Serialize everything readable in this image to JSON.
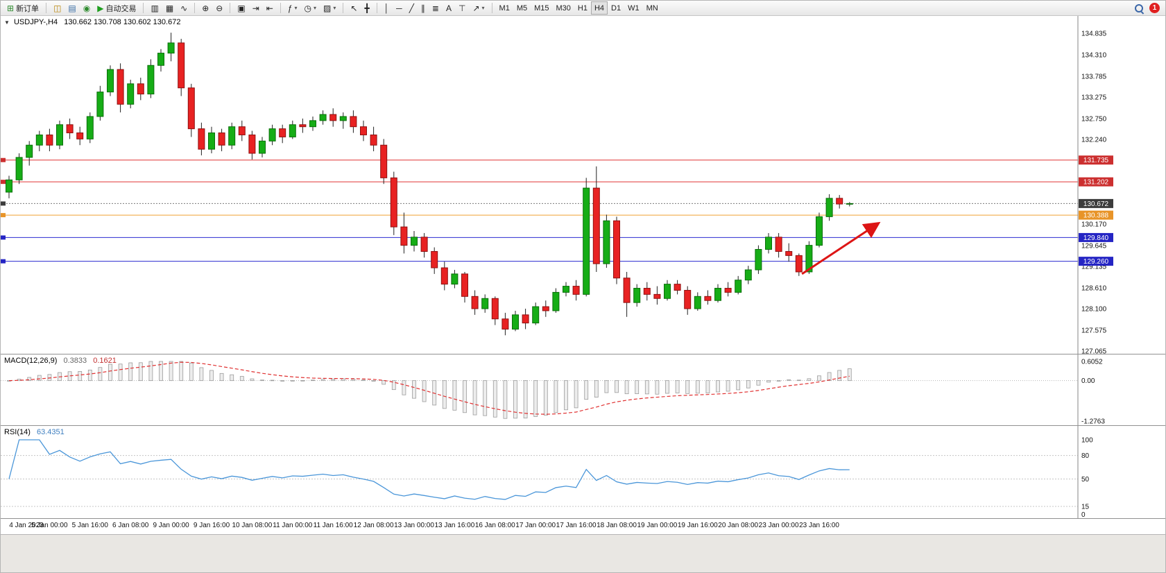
{
  "toolbar": {
    "groups": [
      {
        "name": "order",
        "items": [
          {
            "name": "new-order-button",
            "glyph": "⊞",
            "glyph_color": "#2e8b2e",
            "label": "新订单"
          }
        ]
      },
      {
        "name": "windows",
        "items": [
          {
            "name": "market-watch-button",
            "glyph": "◫",
            "glyph_color": "#b8860b"
          },
          {
            "name": "data-window-button",
            "glyph": "▤",
            "glyph_color": "#3a6ea5"
          },
          {
            "name": "navigator-button",
            "glyph": "◉",
            "glyph_color": "#2e8b2e"
          },
          {
            "name": "autotrading-button",
            "glyph": "▶",
            "glyph_color": "#1e9e1e",
            "label": "自动交易"
          }
        ]
      },
      {
        "name": "chart-type",
        "items": [
          {
            "name": "bar-chart-button",
            "glyph": "▥"
          },
          {
            "name": "candlestick-chart-button",
            "glyph": "▦"
          },
          {
            "name": "line-chart-button",
            "glyph": "∿"
          }
        ]
      },
      {
        "name": "zoom",
        "items": [
          {
            "name": "zoom-in-button",
            "glyph": "⊕"
          },
          {
            "name": "zoom-out-button",
            "glyph": "⊖"
          }
        ]
      },
      {
        "name": "layout",
        "items": [
          {
            "name": "tile-windows-button",
            "glyph": "▣"
          },
          {
            "name": "auto-scroll-button",
            "glyph": "⇥"
          },
          {
            "name": "chart-shift-button",
            "glyph": "⇤"
          }
        ]
      },
      {
        "name": "tools",
        "items": [
          {
            "name": "indicators-button",
            "glyph": "ƒ",
            "dropdown": true
          },
          {
            "name": "periods-button",
            "glyph": "◷",
            "dropdown": true
          },
          {
            "name": "templates-button",
            "glyph": "▨",
            "dropdown": true
          }
        ]
      },
      {
        "name": "pointer",
        "items": [
          {
            "name": "cursor-button",
            "glyph": "↖"
          },
          {
            "name": "crosshair-button",
            "glyph": "╋"
          }
        ]
      },
      {
        "name": "draw",
        "items": [
          {
            "name": "vertical-line-button",
            "glyph": "│"
          },
          {
            "name": "horizontal-line-button",
            "glyph": "─"
          },
          {
            "name": "trendline-button",
            "glyph": "╱"
          },
          {
            "name": "channel-button",
            "glyph": "∥"
          },
          {
            "name": "fibonacci-button",
            "glyph": "≣"
          },
          {
            "name": "text-button",
            "glyph": "A"
          },
          {
            "name": "text-label-button",
            "glyph": "⊤"
          },
          {
            "name": "shapes-button",
            "glyph": "↗",
            "dropdown": true
          }
        ]
      },
      {
        "name": "timeframes",
        "items": [
          {
            "name": "tf-m1-button",
            "label": "M1"
          },
          {
            "name": "tf-m5-button",
            "label": "M5"
          },
          {
            "name": "tf-m15-button",
            "label": "M15"
          },
          {
            "name": "tf-m30-button",
            "label": "M30"
          },
          {
            "name": "tf-h1-button",
            "label": "H1"
          },
          {
            "name": "tf-h4-button",
            "label": "H4",
            "active": true
          },
          {
            "name": "tf-d1-button",
            "label": "D1"
          },
          {
            "name": "tf-w1-button",
            "label": "W1"
          },
          {
            "name": "tf-mn-button",
            "label": "MN"
          }
        ]
      }
    ],
    "notification": {
      "count": "1"
    }
  },
  "chart": {
    "title": {
      "symbol": "USDJPY-,H4",
      "ohlc": "130.662 130.708 130.602 130.672"
    },
    "indicators": {
      "macd": {
        "label": "MACD(12,26,9)",
        "value_main": "0.3833",
        "value_signal": "0.1621",
        "axis": [
          "0.6052",
          "0.00",
          "-1.2763"
        ]
      },
      "rsi": {
        "label": "RSI(14)",
        "value": "63.4351",
        "axis": [
          "100",
          "80",
          "50",
          "15",
          "0"
        ]
      }
    }
  },
  "chart_data": {
    "type": "candlestick",
    "symbol": "USDJPY-",
    "timeframe": "H4",
    "ohlc_current": {
      "open": 130.662,
      "high": 130.708,
      "low": 130.602,
      "close": 130.672
    },
    "ylim": [
      127.065,
      134.835
    ],
    "y_ticks": [
      "134.835",
      "134.310",
      "133.785",
      "133.275",
      "132.750",
      "132.240",
      "131.715",
      "131.205",
      "130.680",
      "130.170",
      "129.645",
      "129.135",
      "128.610",
      "128.100",
      "127.575",
      "127.065"
    ],
    "x_labels": [
      "4 Jan 2023",
      "5 Jan 00:00",
      "5 Jan 16:00",
      "6 Jan 08:00",
      "9 Jan 00:00",
      "9 Jan 16:00",
      "10 Jan 08:00",
      "11 Jan 00:00",
      "11 Jan 16:00",
      "12 Jan 08:00",
      "13 Jan 00:00",
      "13 Jan 16:00",
      "16 Jan 08:00",
      "17 Jan 00:00",
      "17 Jan 16:00",
      "18 Jan 08:00",
      "19 Jan 00:00",
      "19 Jan 16:00",
      "20 Jan 08:00",
      "23 Jan 00:00",
      "23 Jan 16:00"
    ],
    "x_label_step": 4,
    "candles": [
      [
        130.95,
        131.35,
        130.8,
        131.25
      ],
      [
        131.25,
        131.9,
        131.15,
        131.8
      ],
      [
        131.8,
        132.2,
        131.6,
        132.1
      ],
      [
        132.1,
        132.45,
        131.95,
        132.35
      ],
      [
        132.35,
        132.5,
        131.95,
        132.1
      ],
      [
        132.1,
        132.7,
        132.0,
        132.6
      ],
      [
        132.6,
        132.75,
        132.25,
        132.4
      ],
      [
        132.4,
        132.55,
        132.1,
        132.25
      ],
      [
        132.25,
        132.9,
        132.15,
        132.8
      ],
      [
        132.8,
        133.55,
        132.7,
        133.4
      ],
      [
        133.4,
        134.05,
        133.3,
        133.95
      ],
      [
        133.95,
        134.1,
        132.9,
        133.1
      ],
      [
        133.1,
        133.7,
        133.0,
        133.6
      ],
      [
        133.6,
        133.75,
        133.2,
        133.35
      ],
      [
        133.35,
        134.2,
        133.25,
        134.05
      ],
      [
        134.05,
        134.45,
        133.9,
        134.35
      ],
      [
        134.35,
        134.85,
        134.15,
        134.6
      ],
      [
        134.6,
        134.7,
        133.3,
        133.5
      ],
      [
        133.5,
        133.6,
        132.3,
        132.5
      ],
      [
        132.5,
        132.65,
        131.85,
        132.0
      ],
      [
        132.0,
        132.55,
        131.9,
        132.4
      ],
      [
        132.4,
        132.5,
        131.95,
        132.1
      ],
      [
        132.1,
        132.65,
        132.0,
        132.55
      ],
      [
        132.55,
        132.7,
        132.2,
        132.35
      ],
      [
        132.35,
        132.45,
        131.75,
        131.9
      ],
      [
        131.9,
        132.3,
        131.8,
        132.2
      ],
      [
        132.2,
        132.6,
        132.1,
        132.5
      ],
      [
        132.5,
        132.6,
        132.15,
        132.3
      ],
      [
        132.3,
        132.7,
        132.25,
        132.6
      ],
      [
        132.6,
        132.75,
        132.4,
        132.55
      ],
      [
        132.55,
        132.8,
        132.45,
        132.7
      ],
      [
        132.7,
        132.95,
        132.6,
        132.85
      ],
      [
        132.85,
        133.0,
        132.55,
        132.7
      ],
      [
        132.7,
        132.9,
        132.5,
        132.8
      ],
      [
        132.8,
        132.95,
        132.4,
        132.55
      ],
      [
        132.55,
        132.7,
        132.2,
        132.35
      ],
      [
        132.35,
        132.55,
        131.95,
        132.1
      ],
      [
        132.1,
        132.25,
        131.15,
        131.3
      ],
      [
        131.3,
        131.45,
        129.9,
        130.1
      ],
      [
        130.1,
        130.45,
        129.45,
        129.65
      ],
      [
        129.65,
        130.0,
        129.5,
        129.85
      ],
      [
        129.85,
        129.95,
        129.35,
        129.5
      ],
      [
        129.5,
        129.6,
        128.95,
        129.1
      ],
      [
        129.1,
        129.25,
        128.55,
        128.7
      ],
      [
        128.7,
        129.05,
        128.6,
        128.95
      ],
      [
        128.95,
        129.0,
        128.25,
        128.4
      ],
      [
        128.4,
        128.55,
        127.95,
        128.1
      ],
      [
        128.1,
        128.45,
        128.0,
        128.35
      ],
      [
        128.35,
        128.4,
        127.7,
        127.85
      ],
      [
        127.85,
        128.0,
        127.45,
        127.6
      ],
      [
        127.6,
        128.05,
        127.55,
        127.95
      ],
      [
        127.95,
        128.1,
        127.6,
        127.75
      ],
      [
        127.75,
        128.25,
        127.7,
        128.15
      ],
      [
        128.15,
        128.3,
        127.9,
        128.05
      ],
      [
        128.05,
        128.6,
        128.0,
        128.5
      ],
      [
        128.5,
        128.75,
        128.4,
        128.65
      ],
      [
        128.65,
        128.8,
        128.3,
        128.45
      ],
      [
        128.45,
        131.3,
        128.4,
        131.05
      ],
      [
        131.05,
        131.58,
        129.0,
        129.2
      ],
      [
        129.2,
        130.4,
        129.1,
        130.25
      ],
      [
        130.25,
        130.35,
        128.7,
        128.85
      ],
      [
        128.85,
        129.0,
        127.9,
        128.25
      ],
      [
        128.25,
        128.7,
        128.15,
        128.6
      ],
      [
        128.6,
        128.75,
        128.3,
        128.45
      ],
      [
        128.45,
        128.65,
        128.2,
        128.35
      ],
      [
        128.35,
        128.8,
        128.3,
        128.7
      ],
      [
        128.7,
        128.8,
        128.45,
        128.55
      ],
      [
        128.55,
        128.65,
        127.95,
        128.1
      ],
      [
        128.1,
        128.5,
        128.05,
        128.4
      ],
      [
        128.4,
        128.55,
        128.2,
        128.3
      ],
      [
        128.3,
        128.7,
        128.25,
        128.6
      ],
      [
        128.6,
        128.75,
        128.4,
        128.5
      ],
      [
        128.5,
        128.9,
        128.45,
        128.8
      ],
      [
        128.8,
        129.15,
        128.7,
        129.05
      ],
      [
        129.05,
        129.65,
        128.95,
        129.55
      ],
      [
        129.55,
        129.95,
        129.45,
        129.85
      ],
      [
        129.85,
        129.95,
        129.35,
        129.5
      ],
      [
        129.5,
        129.7,
        129.25,
        129.4
      ],
      [
        129.4,
        129.45,
        128.9,
        129.0
      ],
      [
        129.0,
        129.75,
        128.95,
        129.65
      ],
      [
        129.65,
        130.45,
        129.6,
        130.35
      ],
      [
        130.35,
        130.9,
        130.25,
        130.8
      ],
      [
        130.8,
        130.88,
        130.55,
        130.66
      ],
      [
        130.662,
        130.708,
        130.602,
        130.672
      ]
    ],
    "hlines": [
      {
        "price": 131.735,
        "color": "#e03434",
        "style": "solid",
        "badge": "131.735",
        "badge_color": "#cc2f2f"
      },
      {
        "price": 131.202,
        "color": "#e03434",
        "style": "solid",
        "badge": "131.202",
        "badge_color": "#cc2f2f"
      },
      {
        "price": 130.672,
        "color": "#777777",
        "style": "dotted",
        "badge": "130.672",
        "badge_color": "#3c3c3c"
      },
      {
        "price": 130.388,
        "color": "#f0a030",
        "style": "solid",
        "badge": "130.388",
        "badge_color": "#e89428"
      },
      {
        "price": 129.84,
        "color": "#2a2ad0",
        "style": "solid",
        "badge": "129.840",
        "badge_color": "#2525c4"
      },
      {
        "price": 129.26,
        "color": "#2a2ad0",
        "style": "solid",
        "badge": "129.260",
        "badge_color": "#2525c4"
      }
    ],
    "arrow": {
      "from_index": 78.3,
      "from_price": 128.95,
      "to_index": 85.8,
      "to_price": 130.18,
      "color": "#dd1515"
    },
    "macd_range": {
      "max": 0.6052,
      "min": -1.2763
    },
    "macd_current": {
      "main": 0.3833,
      "signal": 0.1621
    },
    "rsi_levels": [
      80,
      50,
      15
    ],
    "rsi_current": 63.4351,
    "colors": {
      "bull": "#16ad16",
      "bear": "#e82222",
      "wick": "#222222",
      "macd_hist_fill": "#ededed",
      "macd_hist_stroke": "#9c9c9c",
      "macd_signal": "#e03030",
      "rsi_line": "#4a96d9"
    }
  }
}
